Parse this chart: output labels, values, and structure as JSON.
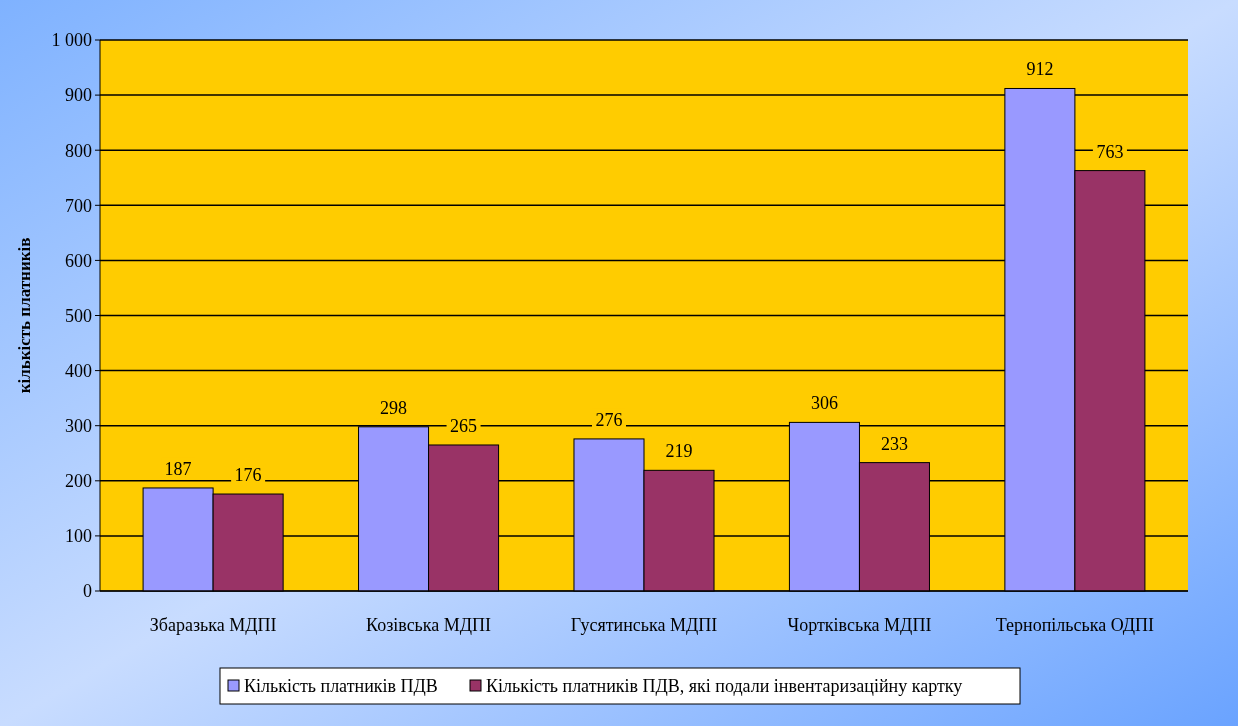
{
  "chart_data": {
    "type": "bar",
    "ylabel": "кількість платників",
    "categories": [
      "Збаразька МДПІ",
      "Козівська МДПІ",
      "Гусятинська  МДПІ",
      "Чортківська МДПІ",
      "Тернопільська ОДПІ"
    ],
    "series": [
      {
        "name": "Кількість платників ПДВ",
        "color": "#9999ff",
        "values": [
          187,
          298,
          276,
          306,
          912
        ]
      },
      {
        "name": "Кількість платників ПДВ, які подали інвентаризаційну картку",
        "color": "#993366",
        "values": [
          176,
          265,
          219,
          233,
          763
        ]
      }
    ],
    "ylim": [
      0,
      1000
    ],
    "yticks": [
      0,
      100,
      200,
      300,
      400,
      500,
      600,
      700,
      800,
      900,
      {
        "value": 1000,
        "label": "1 000"
      }
    ],
    "grid": "y",
    "legend": "bottom",
    "data_labels": true
  }
}
